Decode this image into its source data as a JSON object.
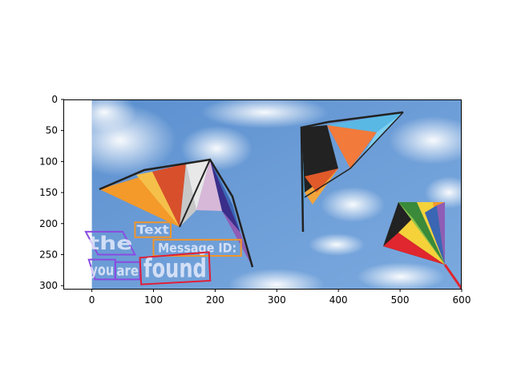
{
  "chart_data": {
    "type": "image",
    "title": "",
    "xlabel": "",
    "ylabel": "",
    "xlim": [
      -45,
      600
    ],
    "ylim": [
      305,
      0
    ],
    "xticks": [
      0,
      100,
      200,
      300,
      400,
      500,
      600
    ],
    "yticks": [
      0,
      50,
      100,
      150,
      200,
      250,
      300
    ],
    "image": {
      "width": 600,
      "height": 305,
      "description_free": true
    },
    "text_annotations": [
      {
        "text": "the",
        "color": "#8a4be0",
        "box": [
          [
            -10,
            213
          ],
          [
            50,
            213
          ],
          [
            70,
            250
          ],
          [
            10,
            250
          ]
        ]
      },
      {
        "text": "Text",
        "color": "#f0952a",
        "box": [
          [
            70,
            198
          ],
          [
            128,
            198
          ],
          [
            128,
            222
          ],
          [
            70,
            222
          ]
        ]
      },
      {
        "text": "Message ID:",
        "color": "#f0952a",
        "box": [
          [
            100,
            226
          ],
          [
            242,
            226
          ],
          [
            242,
            252
          ],
          [
            100,
            252
          ]
        ]
      },
      {
        "text": "you",
        "color": "#8a4be0",
        "box": [
          [
            -5,
            258
          ],
          [
            38,
            258
          ],
          [
            38,
            290
          ],
          [
            5,
            290
          ]
        ]
      },
      {
        "text": "are",
        "color": "#8a4be0",
        "box": [
          [
            38,
            262
          ],
          [
            78,
            262
          ],
          [
            78,
            290
          ],
          [
            38,
            290
          ]
        ]
      },
      {
        "text": "found",
        "color": "#e01e37",
        "box": [
          [
            78,
            255
          ],
          [
            190,
            246
          ],
          [
            192,
            292
          ],
          [
            80,
            298
          ]
        ]
      }
    ]
  }
}
